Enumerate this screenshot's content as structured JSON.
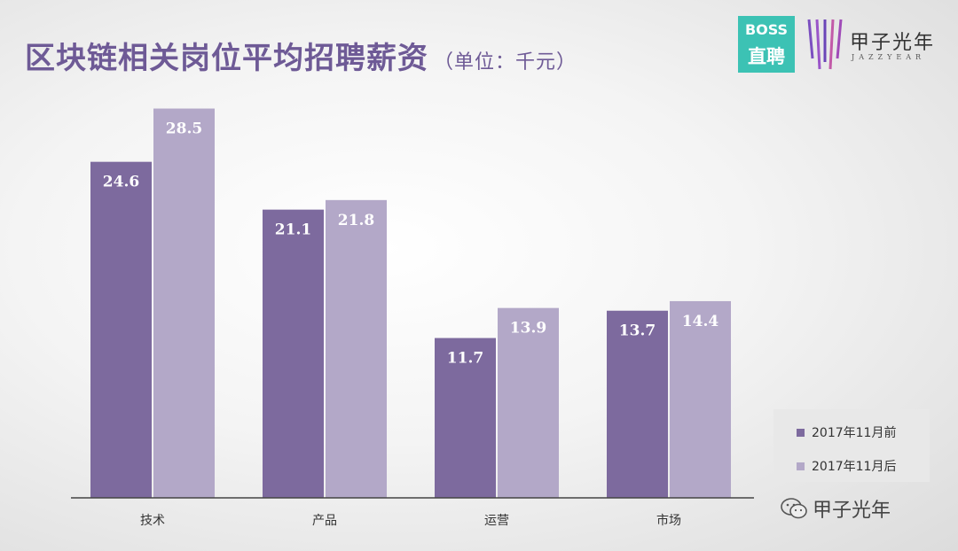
{
  "title": "区块链相关岗位平均招聘薪资",
  "title_unit": "（单位：千元）",
  "logos": {
    "boss_line1": "BOSS",
    "boss_line2": "直聘",
    "boss_color": "#3cc2b4",
    "jazz_cn": "甲子光年",
    "jazz_en": "JAZZYEAR"
  },
  "watermark": "甲子光年",
  "colors": {
    "series_before": "#7d6a9e",
    "series_after": "#b3a8c8",
    "title": "#6e5a96"
  },
  "chart_data": {
    "type": "bar",
    "categories": [
      "技术",
      "产品",
      "运营",
      "市场"
    ],
    "series": [
      {
        "name": "2017年11月前",
        "values": [
          24.6,
          21.1,
          11.7,
          13.7
        ]
      },
      {
        "name": "2017年11月后",
        "values": [
          28.5,
          21.8,
          13.9,
          14.4
        ]
      }
    ],
    "ylim": [
      0,
      30
    ],
    "grid": false,
    "legend_position": "bottom-right",
    "data_labels": true
  }
}
